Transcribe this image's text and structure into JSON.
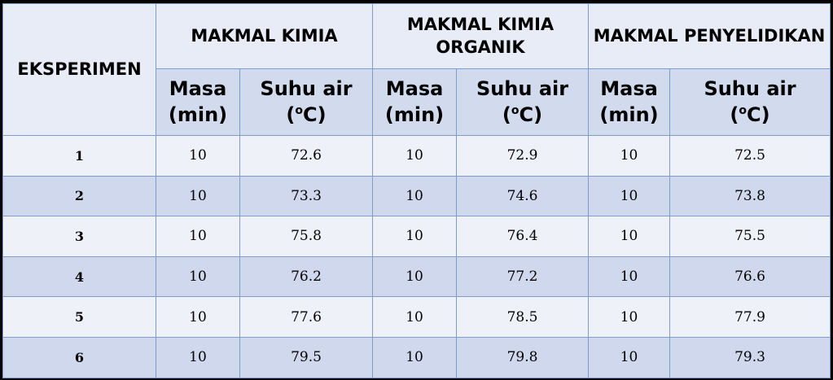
{
  "table": {
    "experiment_header": "EKSPERIMEN",
    "labs": [
      {
        "name": "MAKMAL KIMIA"
      },
      {
        "name": "MAKMAL KIMIA ORGANIK"
      },
      {
        "name": "MAKMAL PENYELIDIKAN"
      }
    ],
    "sub_headers": {
      "masa": "Masa",
      "masa_unit": "(min)",
      "suhu": "Suhu air",
      "suhu_unit_pre": "(",
      "suhu_unit_sup": "o",
      "suhu_unit_post": "C)"
    },
    "rows": [
      {
        "exp": "1",
        "kimia": [
          "10",
          "72.6"
        ],
        "organik": [
          "10",
          "72.9"
        ],
        "penyelidikan": [
          "10",
          "72.5"
        ]
      },
      {
        "exp": "2",
        "kimia": [
          "10",
          "73.3"
        ],
        "organik": [
          "10",
          "74.6"
        ],
        "penyelidikan": [
          "10",
          "73.8"
        ]
      },
      {
        "exp": "3",
        "kimia": [
          "10",
          "75.8"
        ],
        "organik": [
          "10",
          "76.4"
        ],
        "penyelidikan": [
          "10",
          "75.5"
        ]
      },
      {
        "exp": "4",
        "kimia": [
          "10",
          "76.2"
        ],
        "organik": [
          "10",
          "77.2"
        ],
        "penyelidikan": [
          "10",
          "76.6"
        ]
      },
      {
        "exp": "5",
        "kimia": [
          "10",
          "77.6"
        ],
        "organik": [
          "10",
          "78.5"
        ],
        "penyelidikan": [
          "10",
          "77.9"
        ]
      },
      {
        "exp": "6",
        "kimia": [
          "10",
          "79.5"
        ],
        "organik": [
          "10",
          "79.8"
        ],
        "penyelidikan": [
          "10",
          "79.3"
        ]
      }
    ]
  },
  "colors": {
    "background": "#000000",
    "border": "#7e9ccb",
    "row_light": "#eef1f8",
    "row_dark": "#cfd8ec"
  }
}
